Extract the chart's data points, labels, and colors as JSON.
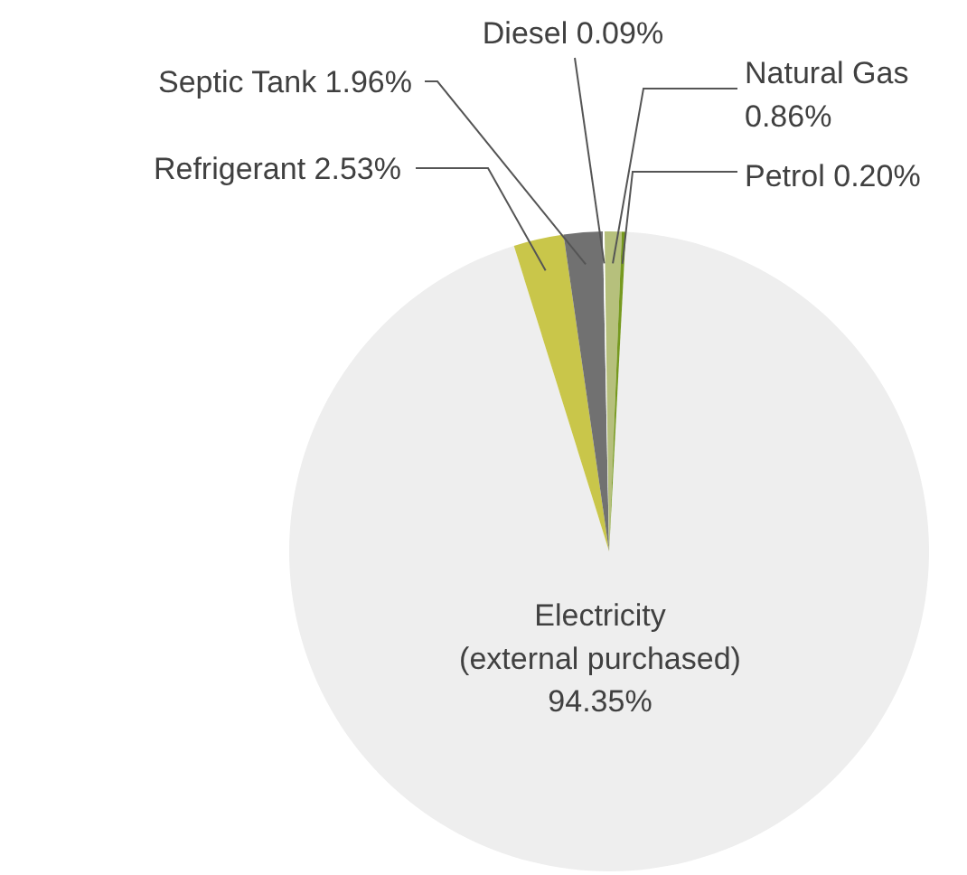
{
  "chart_data": {
    "type": "pie",
    "categories": [
      "Electricity (external purchased)",
      "Refrigerant",
      "Septic Tank",
      "Diesel",
      "Natural Gas",
      "Petrol"
    ],
    "values": [
      94.35,
      2.53,
      1.96,
      0.09,
      0.86,
      0.2
    ],
    "colors": [
      "#eeeeee",
      "#c9c64a",
      "#717171",
      "#ffffff",
      "#b6c07c",
      "#76991f"
    ],
    "value_labels": [
      "94.35%",
      "2.53%",
      "1.96%",
      "0.09%",
      "0.86%",
      "0.20%"
    ],
    "legend": false
  }
}
